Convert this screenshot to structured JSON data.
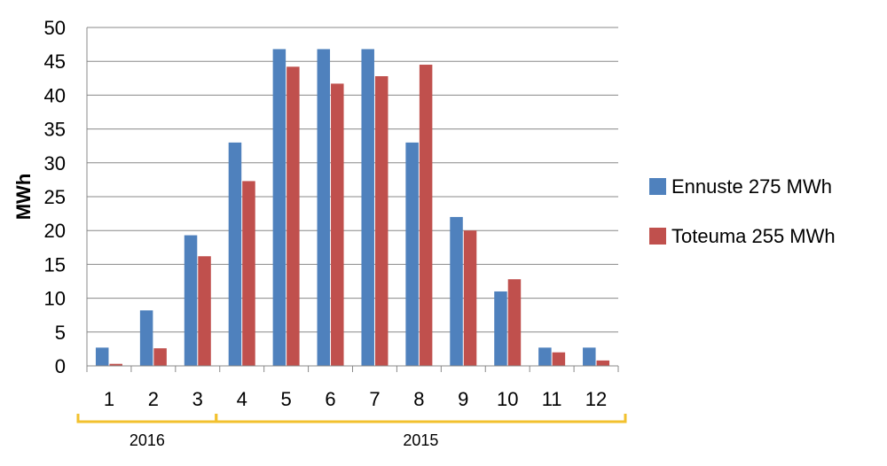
{
  "chart_data": {
    "type": "bar",
    "categories": [
      "1",
      "2",
      "3",
      "4",
      "5",
      "6",
      "7",
      "8",
      "9",
      "10",
      "11",
      "12"
    ],
    "series": [
      {
        "name": "Ennuste 275 MWh",
        "color": "#4F81BD",
        "values": [
          2.7,
          8.2,
          19.3,
          33,
          46.8,
          46.8,
          46.8,
          33,
          22,
          11,
          2.7,
          2.7
        ]
      },
      {
        "name": "Toteuma 255 MWh",
        "color": "#C0504D",
        "values": [
          0.3,
          2.6,
          16.2,
          27.3,
          44.2,
          41.7,
          42.8,
          44.5,
          20,
          12.8,
          2,
          0.8
        ]
      }
    ],
    "ylabel": "MWh",
    "xlabel": "",
    "ylim": [
      0,
      50
    ],
    "yticks": [
      0,
      5,
      10,
      15,
      20,
      25,
      30,
      35,
      40,
      45,
      50
    ],
    "grid": true,
    "legend_position": "right",
    "year_groups": [
      {
        "label": "2016",
        "from": "1",
        "to": "3"
      },
      {
        "label": "2015",
        "from": "4",
        "to": "12"
      }
    ],
    "bracket_color": "#F2C12E"
  }
}
